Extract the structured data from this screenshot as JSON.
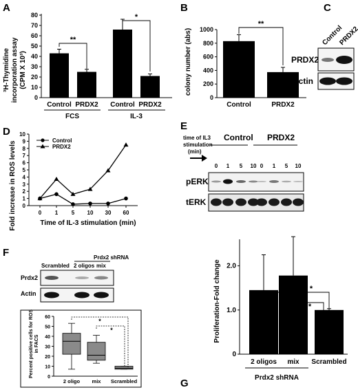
{
  "panels": {
    "A": {
      "label": "A",
      "ylabel_lines": [
        "³H-Thymidine",
        "incorporation assay",
        "(CPM X 10³)"
      ],
      "yticks": [
        0,
        10,
        20,
        30,
        40,
        50,
        60,
        70,
        80
      ],
      "ylim": [
        0,
        80
      ],
      "groups": [
        "FCS",
        "IL-3"
      ],
      "categories": [
        "Control",
        "PRDX2",
        "Control",
        "PRDX2"
      ],
      "significance": [
        "**",
        "*"
      ]
    },
    "B": {
      "label": "B",
      "ylabel": "colony number (abs)",
      "yticks": [
        0,
        200,
        400,
        600,
        800,
        1000
      ],
      "ylim": [
        0,
        1000
      ],
      "categories": [
        "Control",
        "PRDX2"
      ],
      "significance": "**"
    },
    "C": {
      "label": "C",
      "lanes": [
        "Control",
        "PRDX2"
      ],
      "rows": [
        "PRDX2",
        "Actin"
      ]
    },
    "D": {
      "label": "D",
      "ylabel": "Fold increase in ROS levels",
      "xlabel": "Time of IL-3 stimulation (min)",
      "yticks": [
        0,
        1,
        2,
        3,
        4,
        5,
        6,
        7,
        8,
        9,
        10
      ],
      "xticks": [
        "0",
        "1",
        "5",
        "10",
        "30",
        "60"
      ],
      "legend": [
        "Control",
        "PRDX2"
      ]
    },
    "E": {
      "label": "E",
      "header_lines": [
        "time of IL3",
        "stimulation",
        "(min)"
      ],
      "groups": [
        "Control",
        "PRDX2"
      ],
      "times": [
        "0",
        "1",
        "5",
        "10",
        "0",
        "1",
        "5",
        "10"
      ],
      "rows": [
        "pERK",
        "tERK"
      ]
    },
    "F": {
      "label": "F",
      "blot_header": "Prdx2 shRNA",
      "blot_lanes": [
        "Scrambled",
        "2 oligos",
        "mix"
      ],
      "blot_rows": [
        "Prdx2",
        "Actin"
      ],
      "box_ylabel_lines": [
        "Percent positive cells for ROS",
        "in FACS"
      ],
      "box_yticks": [
        0,
        10,
        20,
        30,
        40,
        50,
        60
      ],
      "box_categories": [
        "2 oligo",
        "mix",
        "Scrambled"
      ],
      "significance": [
        "*",
        "*"
      ]
    },
    "G": {
      "label": "G",
      "ylabel": "Proliferation-Fold change",
      "yticks": [
        "0",
        "1.0",
        "2.0"
      ],
      "categories": [
        "2 oligos",
        "mix",
        "Scrambled"
      ],
      "group_label": "Prdx2 shRNA",
      "significance": [
        "*",
        "*"
      ]
    }
  },
  "chart_data": [
    {
      "type": "bar",
      "panel": "A",
      "categories": [
        "Control",
        "PRDX2",
        "Control",
        "PRDX2"
      ],
      "values": [
        43,
        25,
        66,
        21
      ],
      "errors": [
        4,
        2.5,
        10,
        2
      ],
      "ylim": [
        0,
        80
      ]
    },
    {
      "type": "bar",
      "panel": "B",
      "categories": [
        "Control",
        "PRDX2"
      ],
      "values": [
        830,
        375
      ],
      "errors": [
        95,
        70
      ],
      "ylim": [
        0,
        1000
      ]
    },
    {
      "type": "line",
      "panel": "D",
      "x": [
        "0",
        "1",
        "5",
        "10",
        "30",
        "60"
      ],
      "ylim": [
        0,
        10
      ],
      "series": [
        {
          "name": "Control",
          "marker": "circle",
          "values": [
            1.0,
            1.6,
            0.2,
            0.3,
            0.3,
            1.0
          ]
        },
        {
          "name": "PRDX2",
          "marker": "triangle",
          "values": [
            1.0,
            3.7,
            1.6,
            2.3,
            4.9,
            8.5
          ]
        }
      ]
    },
    {
      "type": "box",
      "panel": "F",
      "categories": [
        "2 oligo",
        "mix",
        "Scrambled"
      ],
      "ylim": [
        0,
        60
      ],
      "boxes": [
        {
          "min": 7,
          "q1": 22,
          "median": 35,
          "q3": 43,
          "max": 53
        },
        {
          "min": 13,
          "q1": 16,
          "median": 21,
          "q3": 34,
          "max": 41
        },
        {
          "min": 7,
          "q1": 7,
          "median": 8,
          "q3": 10,
          "max": 10
        }
      ]
    },
    {
      "type": "bar",
      "panel": "G",
      "categories": [
        "2 oligos",
        "mix",
        "Scrambled"
      ],
      "values": [
        1.45,
        1.78,
        1.0
      ],
      "errors_up": [
        0.8,
        0.88,
        0.03
      ],
      "ylim": [
        0,
        2.6
      ]
    }
  ]
}
